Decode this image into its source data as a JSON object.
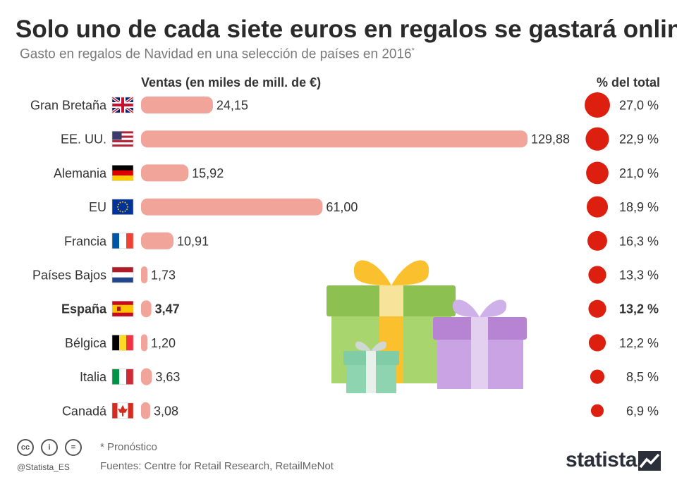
{
  "title": "Solo uno de cada siete euros en regalos se gastará online",
  "subtitle": "Gasto en regalos de Navidad en una selección de países en 2016",
  "subtitle_mark": "*",
  "footer": {
    "note": "* Pronóstico",
    "sources": "Fuentes: Centre for Retail Research, RetailMeNot",
    "handle": "@Statista_ES",
    "brand": "statista"
  },
  "colors": {
    "bar": "#f0a49a",
    "dot": "#dd1f10",
    "text": "#333333"
  },
  "chart_data": {
    "type": "bar",
    "columns": {
      "sales": "Ventas (en miles de mill. de €)",
      "share": "% del total"
    },
    "categories": [
      "Gran Bretaña",
      "EE. UU.",
      "Alemania",
      "EU",
      "Francia",
      "Países Bajos",
      "España",
      "Bélgica",
      "Italia",
      "Canadá"
    ],
    "highlight": "España",
    "series": [
      {
        "values": [
          24.15,
          129.88,
          15.92,
          61.0,
          10.91,
          1.73,
          3.47,
          1.2,
          3.63,
          3.08
        ],
        "labels": [
          "24,15",
          "129,88",
          "15,92",
          "61,00",
          "10,91",
          "1,73",
          "3,47",
          "1,20",
          "3,63",
          "3,08"
        ]
      },
      {
        "values": [
          27.0,
          22.9,
          21.0,
          18.9,
          16.3,
          13.3,
          13.2,
          12.2,
          8.5,
          6.9
        ],
        "labels": [
          "27,0 %",
          "22,9 %",
          "21,0 %",
          "18,9 %",
          "16,3 %",
          "13,3 %",
          "13,2 %",
          "12,2 %",
          "8,5 %",
          "6,9 %"
        ]
      }
    ],
    "flags": [
      "gb",
      "us",
      "de",
      "eu",
      "fr",
      "nl",
      "es",
      "be",
      "it",
      "ca"
    ]
  }
}
